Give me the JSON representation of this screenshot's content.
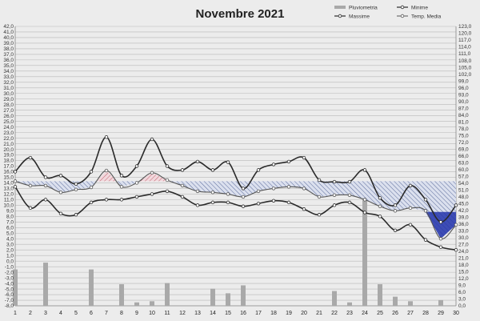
{
  "chart_data": {
    "type": "line",
    "title": "Novembre 2021",
    "x": [
      1,
      2,
      3,
      4,
      5,
      6,
      7,
      8,
      9,
      10,
      11,
      12,
      13,
      14,
      15,
      16,
      17,
      18,
      19,
      20,
      21,
      22,
      23,
      24,
      25,
      26,
      27,
      28,
      29,
      30
    ],
    "left_axis": {
      "range": [
        -8.0,
        42.0
      ],
      "ticks": [
        "-8,0",
        "-7,0",
        "-6,0",
        "-5,0",
        "-4,0",
        "-3,0",
        "-2,0",
        "-1,0",
        "0,0",
        "1,0",
        "2,0",
        "3,0",
        "4,0",
        "5,0",
        "6,0",
        "7,0",
        "8,0",
        "9,0",
        "10,0",
        "11,0",
        "12,0",
        "13,0",
        "14,0",
        "15,0",
        "16,0",
        "17,0",
        "18,0",
        "19,0",
        "20,0",
        "21,0",
        "22,0",
        "23,0",
        "24,0",
        "25,0",
        "26,0",
        "27,0",
        "28,0",
        "29,0",
        "30,0",
        "31,0",
        "32,0",
        "33,0",
        "34,0",
        "35,0",
        "36,0",
        "37,0",
        "38,0",
        "39,0",
        "40,0",
        "41,0",
        "42,0"
      ]
    },
    "right_axis": {
      "range": [
        0.0,
        123.0
      ],
      "ticks": [
        "0,0",
        "3,0",
        "6,0",
        "9,0",
        "12,0",
        "15,0",
        "18,0",
        "21,0",
        "24,0",
        "27,0",
        "30,0",
        "33,0",
        "36,0",
        "39,0",
        "42,0",
        "45,0",
        "48,0",
        "51,0",
        "54,0",
        "57,0",
        "60,0",
        "63,0",
        "66,0",
        "69,0",
        "72,0",
        "75,0",
        "78,0",
        "81,0",
        "84,0",
        "87,0",
        "90,0",
        "93,0",
        "96,0",
        "99,0",
        "102,0",
        "105,0",
        "108,0",
        "111,0",
        "114,0",
        "117,0",
        "120,0",
        "123,0"
      ]
    },
    "series": [
      {
        "name": "Pluviometria",
        "kind": "bar",
        "axis": "right",
        "color": "#a9a9a9",
        "values": [
          16,
          0,
          19,
          0,
          0,
          16,
          0,
          9.5,
          1.5,
          2,
          10,
          0,
          0,
          7.5,
          5.5,
          9,
          0,
          0,
          0,
          0,
          0,
          6.5,
          1.5,
          54.5,
          9.5,
          4,
          2,
          0,
          2.5,
          0
        ]
      },
      {
        "name": "Massime",
        "kind": "line",
        "axis": "left",
        "color": "#2a2a2a",
        "values": [
          16.0,
          18.5,
          15.0,
          15.3,
          13.8,
          16.0,
          22.2,
          15.3,
          17.0,
          21.8,
          17.0,
          16.3,
          17.8,
          16.3,
          17.7,
          13.0,
          16.3,
          17.3,
          17.8,
          18.5,
          14.5,
          14.2,
          14.2,
          16.3,
          11.3,
          10.0,
          13.5,
          11.0,
          7.0,
          10.0
        ]
      },
      {
        "name": "Minime",
        "kind": "line",
        "axis": "left",
        "color": "#2a2a2a",
        "values": [
          13.3,
          9.5,
          11.0,
          8.5,
          8.3,
          10.5,
          11.0,
          11.0,
          11.5,
          12.0,
          12.5,
          11.5,
          10.0,
          10.5,
          10.5,
          9.8,
          10.3,
          10.8,
          10.5,
          9.3,
          8.3,
          10.0,
          10.5,
          8.7,
          8.0,
          5.5,
          6.5,
          3.8,
          2.5,
          2.0
        ]
      },
      {
        "name": "Temp. Media",
        "kind": "line",
        "axis": "left",
        "color": "#555555",
        "values": [
          14.3,
          13.5,
          13.5,
          12.3,
          12.8,
          13.2,
          16.2,
          13.3,
          14.0,
          15.8,
          14.5,
          13.5,
          12.5,
          12.3,
          12.0,
          11.5,
          12.5,
          13.0,
          13.3,
          13.0,
          11.5,
          11.8,
          11.8,
          11.0,
          9.8,
          9.0,
          9.5,
          9.0,
          4.0,
          6.5
        ]
      }
    ],
    "legend": [
      "Pluviometria",
      "Minime",
      "Massime",
      "Temp. Media"
    ],
    "legend_placement": "top-right",
    "grid": true,
    "colors": {
      "background": "#ececec",
      "grid": "#b8b8b8",
      "line": "#2a2a2a",
      "bar": "#a9a9a9",
      "above_fill": "#d9a0a8",
      "below_fill": "#8f9fc4",
      "below_fill_dark": "#2233aa"
    }
  }
}
